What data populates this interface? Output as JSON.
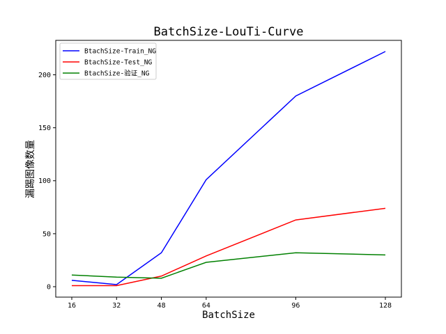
{
  "chart_data": {
    "type": "line",
    "title": "BatchSize-LouTi-Curve",
    "xlabel": "BatchSize",
    "ylabel": "漏踢图像数量",
    "x": [
      16,
      32,
      48,
      64,
      96,
      128
    ],
    "x_ticks": [
      "16",
      "32",
      "48",
      "64",
      "96",
      "128"
    ],
    "y_ticks": [
      "0",
      "50",
      "100",
      "150",
      "200"
    ],
    "xlim": [
      16,
      128
    ],
    "ylim": [
      0,
      222
    ],
    "grid": false,
    "legend_position": "top-left",
    "series": [
      {
        "name": "BtachSize-Train_NG",
        "color": "#0000ff",
        "values": [
          6,
          2,
          32,
          101,
          180,
          222
        ]
      },
      {
        "name": "BtachSize-Test_NG",
        "color": "#ff0000",
        "values": [
          1,
          1,
          10,
          29,
          63,
          74
        ]
      },
      {
        "name": "BtachSize-验证_NG",
        "color": "#008000",
        "values": [
          11,
          9,
          8,
          23,
          32,
          30
        ]
      }
    ]
  }
}
